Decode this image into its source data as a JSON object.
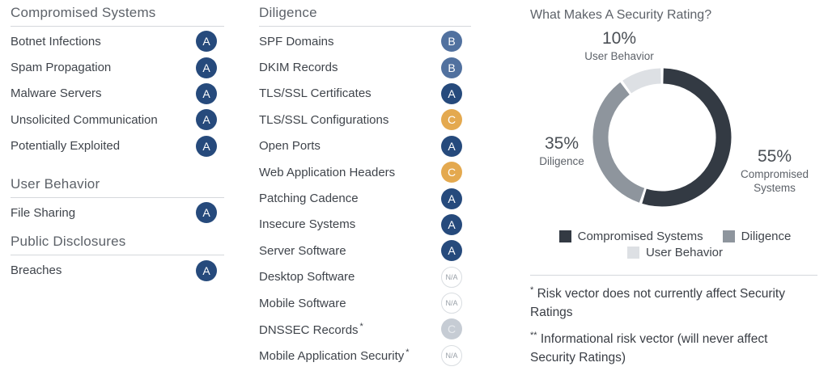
{
  "vector_sections": {
    "left": [
      {
        "title": "Compromised Systems",
        "items": [
          {
            "label": "Botnet Infections",
            "grade": "A"
          },
          {
            "label": "Spam Propagation",
            "grade": "A"
          },
          {
            "label": "Malware Servers",
            "grade": "A"
          },
          {
            "label": "Unsolicited Communication",
            "grade": "A"
          },
          {
            "label": "Potentially Exploited",
            "grade": "A"
          }
        ]
      },
      {
        "title": "User Behavior",
        "items": [
          {
            "label": "File Sharing",
            "grade": "A"
          }
        ]
      },
      {
        "title": "Public Disclosures",
        "items": [
          {
            "label": "Breaches",
            "grade": "A"
          }
        ]
      }
    ],
    "middle": [
      {
        "title": "Diligence",
        "items": [
          {
            "label": "SPF Domains",
            "grade": "B"
          },
          {
            "label": "DKIM Records",
            "grade": "B"
          },
          {
            "label": "TLS/SSL Certificates",
            "grade": "A"
          },
          {
            "label": "TLS/SSL Configurations",
            "grade": "C"
          },
          {
            "label": "Open Ports",
            "grade": "A"
          },
          {
            "label": "Web Application Headers",
            "grade": "C"
          },
          {
            "label": "Patching Cadence",
            "grade": "A"
          },
          {
            "label": "Insecure Systems",
            "grade": "A"
          },
          {
            "label": "Server Software",
            "grade": "A"
          },
          {
            "label": "Desktop Software",
            "grade": "N/A"
          },
          {
            "label": "Mobile Software",
            "grade": "N/A"
          },
          {
            "label": "DNSSEC Records",
            "marker": "*",
            "grade": "C",
            "muted": true
          },
          {
            "label": "Mobile Application Security",
            "marker": "*",
            "grade": "N/A"
          }
        ]
      }
    ]
  },
  "chart_data": {
    "type": "pie",
    "donut": true,
    "title": "What Makes A Security Rating?",
    "start_angle_deg": 0,
    "legend_position": "bottom",
    "slices": [
      {
        "label": "Compromised Systems",
        "value": 55,
        "pct_label": "55%",
        "color": "#333a43"
      },
      {
        "label": "Diligence",
        "value": 35,
        "pct_label": "35%",
        "color": "#8e959d"
      },
      {
        "label": "User Behavior",
        "value": 10,
        "pct_label": "10%",
        "color": "#dde0e4"
      }
    ]
  },
  "footnotes": [
    {
      "marker": "*",
      "text": "Risk vector does not currently affect Security Ratings"
    },
    {
      "marker": "**",
      "text": "Informational risk vector (will never affect Security Ratings)"
    }
  ],
  "colors": {
    "grade_a": "#264a7c",
    "grade_b": "#51719f",
    "grade_c": "#e4a94f",
    "grade_c_muted": "#c6ccd4",
    "na_border": "#d9dde1",
    "na_text": "#989fa7",
    "heading_text": "#5d6269",
    "body_text": "#3f444b",
    "divider": "#d5d8dc"
  }
}
